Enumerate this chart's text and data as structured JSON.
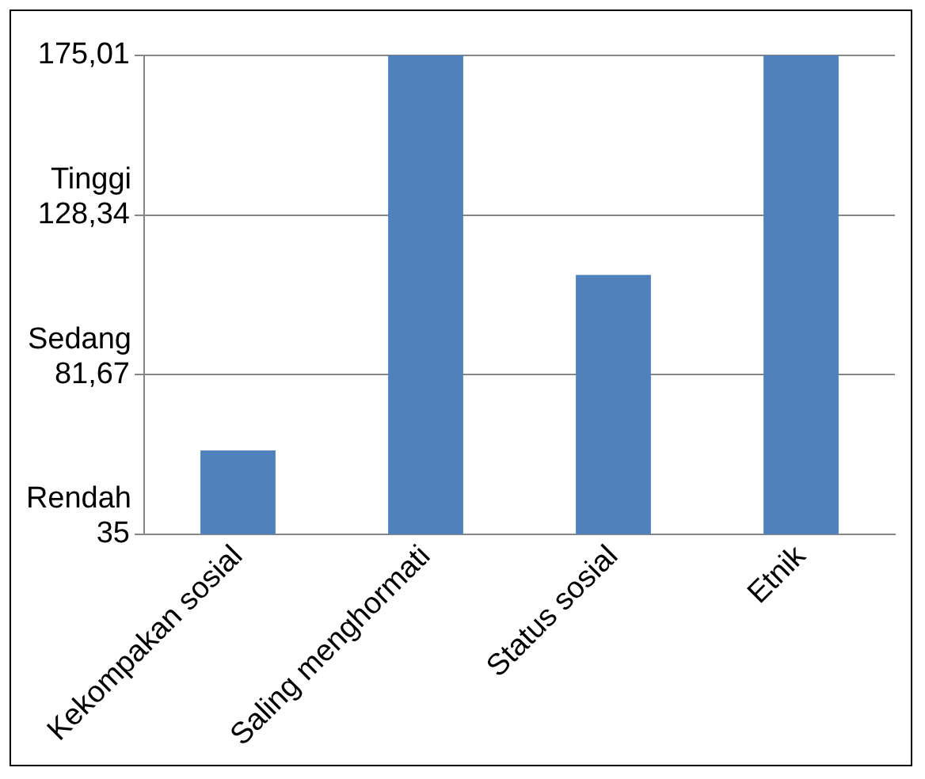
{
  "chart_data": {
    "type": "bar",
    "categories": [
      "Kekompakan sosial",
      "Saling menghormati",
      "Status sosial",
      "Etnik"
    ],
    "values": [
      59.5,
      175,
      110.8,
      175
    ],
    "color": "#4f81bd",
    "ylim": [
      35,
      175.01
    ],
    "yticks": [
      {
        "value": 35,
        "label": "35"
      },
      {
        "value": 81.67,
        "label": "81,67"
      },
      {
        "value": 128.34,
        "label": "128,34"
      },
      {
        "value": 175.01,
        "label": "175,01"
      }
    ],
    "annotations": [
      "Rendah",
      "Sedang",
      "Tinggi"
    ],
    "grid": "y"
  }
}
